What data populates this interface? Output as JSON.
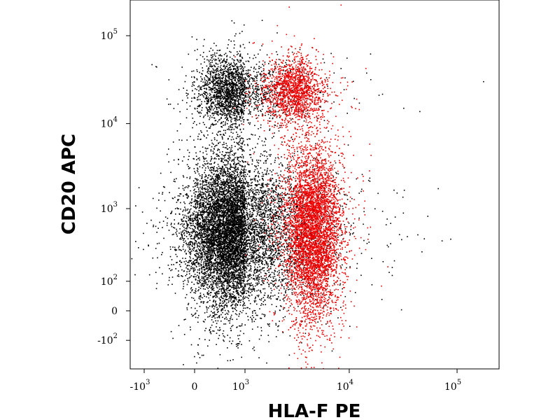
{
  "chart_data": {
    "type": "scatter",
    "title": "",
    "xlabel": "HLA-F PE",
    "ylabel": "CD20 APC",
    "x_scale": "biexponential",
    "y_scale": "biexponential",
    "xlim": [
      -2000,
      250000
    ],
    "ylim": [
      -400,
      300000
    ],
    "grid": false,
    "legend": "none",
    "x_ticks": [
      {
        "base": "-10",
        "exp": "3",
        "value": -1000
      },
      {
        "base": "0",
        "exp": "",
        "value": 0
      },
      {
        "base": "10",
        "exp": "3",
        "value": 1000
      },
      {
        "base": "10",
        "exp": "4",
        "value": 10000
      },
      {
        "base": "10",
        "exp": "5",
        "value": 100000
      }
    ],
    "y_ticks": [
      {
        "base": "10",
        "exp": "5",
        "value": 100000
      },
      {
        "base": "10",
        "exp": "4",
        "value": 10000
      },
      {
        "base": "10",
        "exp": "3",
        "value": 1000
      },
      {
        "base": "10",
        "exp": "2",
        "value": 100
      },
      {
        "base": "0",
        "exp": "",
        "value": 0
      },
      {
        "base": "-10",
        "exp": "2",
        "value": -100
      }
    ],
    "series": [
      {
        "color": "#000000",
        "populations": [
          {
            "x_median": 450,
            "y_median": 550,
            "x_range": [
              -1500,
              2000
            ],
            "y_range": [
              -150,
              5000
            ],
            "events": 9000
          },
          {
            "x_median": 450,
            "y_median": 24000,
            "x_range": [
              -500,
              1500
            ],
            "y_range": [
              10000,
              110000
            ],
            "events": 2200
          }
        ]
      },
      {
        "color": "#ee0000",
        "populations": [
          {
            "x_median": 4500,
            "y_median": 550,
            "x_range": [
              1700,
              9000
            ],
            "y_range": [
              -400,
              6000
            ],
            "events": 5000
          },
          {
            "x_median": 3000,
            "y_median": 24000,
            "x_range": [
              1200,
              8000
            ],
            "y_range": [
              10000,
              110000
            ],
            "events": 1600
          }
        ]
      }
    ]
  }
}
